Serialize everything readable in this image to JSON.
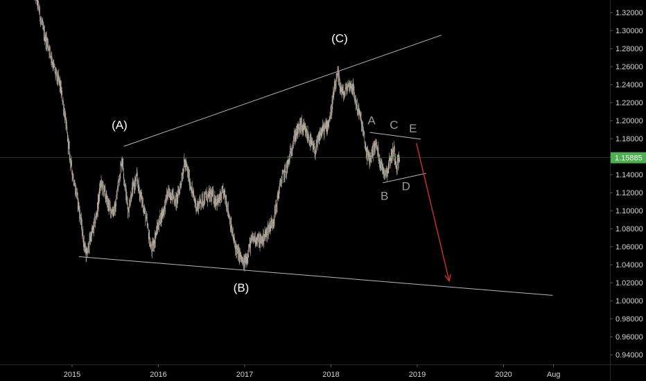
{
  "chart_data": {
    "type": "candlestick",
    "instrument_last_price": "1.15885",
    "price_label_color": "#4caf50",
    "background": "#000000",
    "candle_color": "#b0a79c",
    "trendline_color": "#b9b9b9",
    "arrow_color": "#d32f2f",
    "grid": false,
    "ylim": [
      0.93,
      1.33
    ],
    "y_ticks": [
      "1.32000",
      "1.30000",
      "1.28000",
      "1.26000",
      "1.24000",
      "1.22000",
      "1.20000",
      "1.18000",
      "1.16000",
      "1.14000",
      "1.12000",
      "1.10000",
      "1.08000",
      "1.06000",
      "1.04000",
      "1.02000",
      "1.00000",
      "0.98000",
      "0.96000",
      "0.94000"
    ],
    "x_ticks": [
      "2015",
      "2016",
      "2017",
      "2018",
      "2019",
      "2020",
      "Aug"
    ],
    "price_path": [
      [
        2014.55,
        1.345
      ],
      [
        2014.65,
        1.31
      ],
      [
        2014.75,
        1.27
      ],
      [
        2014.85,
        1.245
      ],
      [
        2014.95,
        1.18
      ],
      [
        2015.04,
        1.12
      ],
      [
        2015.1,
        1.09
      ],
      [
        2015.17,
        1.05
      ],
      [
        2015.25,
        1.08
      ],
      [
        2015.33,
        1.13
      ],
      [
        2015.4,
        1.11
      ],
      [
        2015.5,
        1.1
      ],
      [
        2015.58,
        1.16
      ],
      [
        2015.65,
        1.1
      ],
      [
        2015.75,
        1.14
      ],
      [
        2015.85,
        1.09
      ],
      [
        2015.92,
        1.06
      ],
      [
        2016.0,
        1.08
      ],
      [
        2016.1,
        1.12
      ],
      [
        2016.2,
        1.11
      ],
      [
        2016.3,
        1.15
      ],
      [
        2016.38,
        1.13
      ],
      [
        2016.45,
        1.1
      ],
      [
        2016.55,
        1.12
      ],
      [
        2016.65,
        1.11
      ],
      [
        2016.75,
        1.12
      ],
      [
        2016.83,
        1.09
      ],
      [
        2016.92,
        1.05
      ],
      [
        2016.98,
        1.04
      ],
      [
        2017.05,
        1.06
      ],
      [
        2017.15,
        1.07
      ],
      [
        2017.25,
        1.07
      ],
      [
        2017.35,
        1.1
      ],
      [
        2017.45,
        1.14
      ],
      [
        2017.55,
        1.17
      ],
      [
        2017.65,
        1.2
      ],
      [
        2017.72,
        1.18
      ],
      [
        2017.82,
        1.17
      ],
      [
        2017.92,
        1.19
      ],
      [
        2018.0,
        1.21
      ],
      [
        2018.08,
        1.25
      ],
      [
        2018.15,
        1.23
      ],
      [
        2018.25,
        1.24
      ],
      [
        2018.32,
        1.21
      ],
      [
        2018.4,
        1.17
      ],
      [
        2018.45,
        1.16
      ],
      [
        2018.52,
        1.17
      ],
      [
        2018.6,
        1.15
      ],
      [
        2018.65,
        1.14
      ],
      [
        2018.7,
        1.16
      ],
      [
        2018.73,
        1.17
      ],
      [
        2018.76,
        1.155
      ],
      [
        2018.8,
        1.15885
      ]
    ],
    "trendlines": [
      {
        "name": "upper-trendline",
        "from": [
          2015.6,
          1.1715
        ],
        "to": [
          2019.28,
          1.295
        ]
      },
      {
        "name": "lower-trendline",
        "from": [
          2015.08,
          1.049
        ],
        "to": [
          2020.57,
          1.006
        ]
      },
      {
        "name": "triangle-upper-line",
        "from": [
          2018.45,
          1.187
        ],
        "to": [
          2019.04,
          1.1795
        ]
      },
      {
        "name": "triangle-lower-line",
        "from": [
          2018.6,
          1.131
        ],
        "to": [
          2019.1,
          1.1415
        ]
      }
    ],
    "projection_arrow": {
      "from": [
        2018.99,
        1.175
      ],
      "to": [
        2019.37,
        1.022
      ]
    },
    "wave_labels": [
      {
        "text": "(A)",
        "x": 2015.55,
        "y": 1.191,
        "style": "white"
      },
      {
        "text": "(B)",
        "x": 2016.96,
        "y": 1.01,
        "style": "white"
      },
      {
        "text": "(C)",
        "x": 2018.1,
        "y": 1.287,
        "style": "white"
      },
      {
        "text": "A",
        "x": 2018.47,
        "y": 1.196,
        "style": "grey"
      },
      {
        "text": "B",
        "x": 2018.62,
        "y": 1.112,
        "style": "grey"
      },
      {
        "text": "C",
        "x": 2018.73,
        "y": 1.191,
        "style": "grey"
      },
      {
        "text": "D",
        "x": 2018.87,
        "y": 1.123,
        "style": "grey"
      },
      {
        "text": "E",
        "x": 2018.95,
        "y": 1.187,
        "style": "grey"
      }
    ]
  }
}
